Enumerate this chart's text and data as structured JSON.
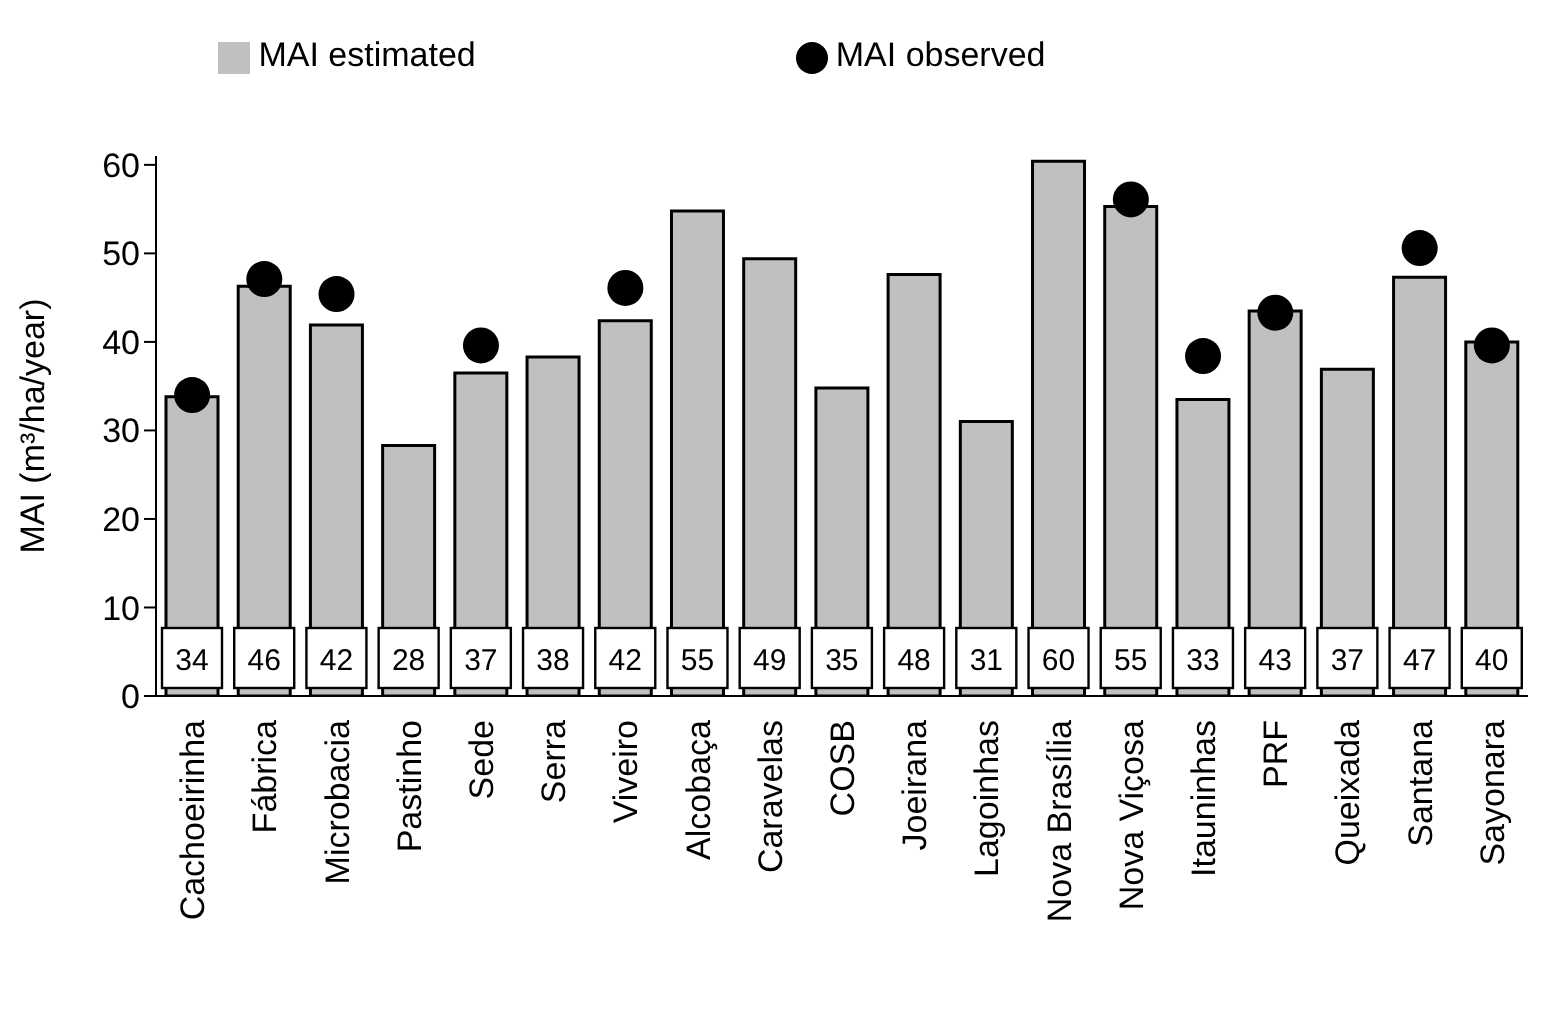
{
  "chart_data": {
    "type": "bar",
    "ylabel": "MAI (m³/ha/year)",
    "categories": [
      "Cachoeirinha",
      "Fábrica",
      "Microbacia",
      "Pastinho",
      "Sede",
      "Serra",
      "Viveiro",
      "Alcobaça",
      "Caravelas",
      "COSB",
      "Joeirana",
      "Lagoinhas",
      "Nova Brasília",
      "Nova Viçosa",
      "Itauninhas",
      "PRF",
      "Queixada",
      "Santana",
      "Sayonara"
    ],
    "series": [
      {
        "name": "MAI estimated",
        "color": "#c0c0c0",
        "values": [
          33.8,
          46.3,
          41.9,
          28.3,
          36.5,
          38.3,
          42.4,
          54.8,
          49.4,
          34.8,
          47.6,
          31.0,
          60.4,
          55.3,
          33.5,
          43.5,
          36.9,
          47.3,
          40.0
        ],
        "value_labels": [
          "34",
          "46",
          "42",
          "28",
          "37",
          "38",
          "42",
          "55",
          "49",
          "35",
          "48",
          "31",
          "60",
          "55",
          "33",
          "43",
          "37",
          "47",
          "40"
        ]
      },
      {
        "name": "MAI observed",
        "type": "scatter",
        "color": "#000000",
        "marker": "circle",
        "x": [
          "Cachoeirinha",
          "Fábrica",
          "Microbacia",
          "Sede",
          "Viveiro",
          "Nova Viçosa",
          "Itauninhas",
          "PRF",
          "Santana",
          "Sayonara"
        ],
        "values": [
          34.0,
          47.1,
          45.4,
          39.6,
          46.1,
          56.1,
          38.4,
          43.3,
          50.6,
          39.6
        ]
      }
    ],
    "ylim": [
      0,
      61
    ],
    "yticks": [
      0,
      10,
      20,
      30,
      40,
      50,
      60
    ],
    "grid": false,
    "legend": "top"
  }
}
